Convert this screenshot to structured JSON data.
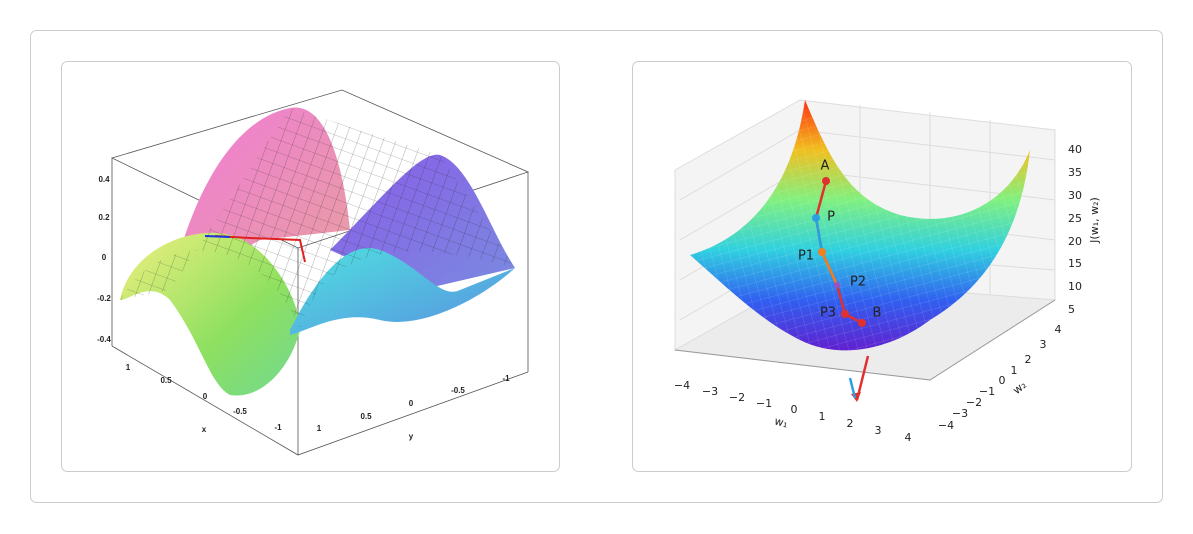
{
  "panels": [
    {
      "z_ticks": [
        "0.4",
        "0.2",
        "0",
        "-0.2",
        "-0.4"
      ],
      "x_ticks": [
        "1",
        "0.5",
        "0",
        "-0.5",
        "-1"
      ],
      "y_ticks": [
        "1",
        "0.5",
        "0",
        "-0.5",
        "-1"
      ],
      "x_label": "x",
      "y_label": "y"
    },
    {
      "z_ticks": [
        "40",
        "35",
        "30",
        "25",
        "20",
        "15",
        "10",
        "5"
      ],
      "w1_ticks": [
        "−4",
        "−3",
        "−2",
        "−1",
        "0",
        "1",
        "2",
        "3",
        "4"
      ],
      "w2_ticks": [
        "4",
        "3",
        "2",
        "1",
        "0",
        "−1",
        "−2",
        "−3",
        "−4"
      ],
      "w1_label": "w₁",
      "w2_label": "w₂",
      "z_label": "J(w₁, w₂)",
      "points": [
        "A",
        "P",
        "P1",
        "P2",
        "P3",
        "B"
      ]
    }
  ]
}
